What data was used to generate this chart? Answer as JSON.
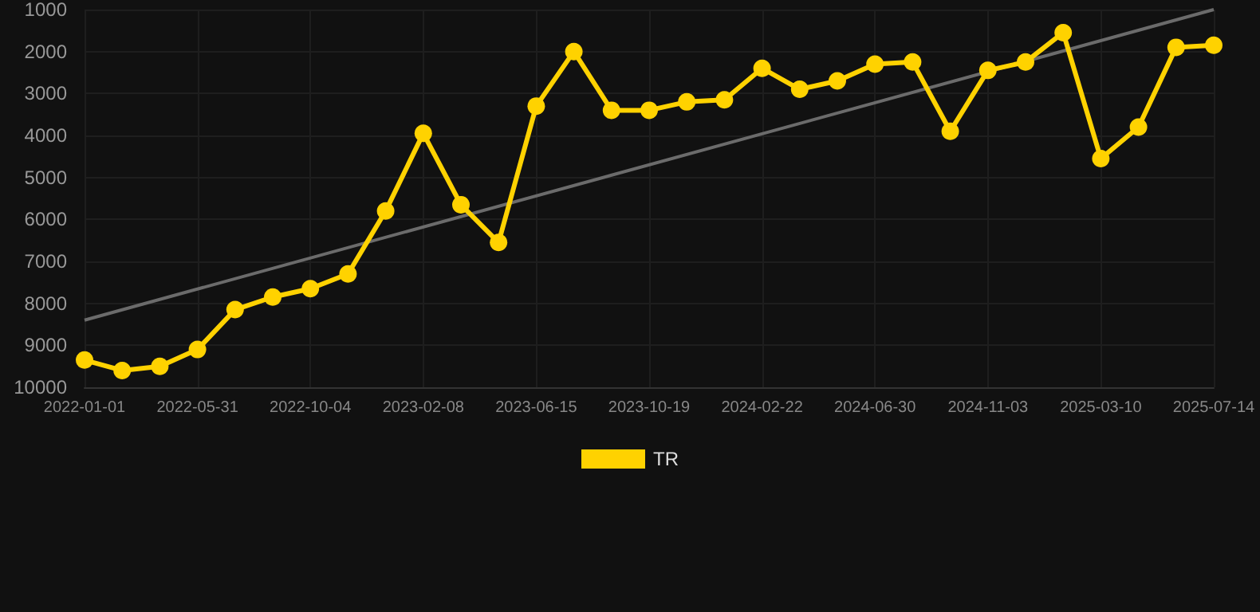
{
  "chart_data": {
    "type": "line",
    "categories": [
      "2022-01-01",
      null,
      null,
      "2022-05-31",
      null,
      null,
      "2022-10-04",
      null,
      null,
      "2023-02-08",
      null,
      null,
      "2023-06-15",
      null,
      null,
      "2023-10-19",
      null,
      null,
      "2024-02-22",
      null,
      null,
      "2024-06-30",
      null,
      null,
      "2024-11-03",
      null,
      null,
      "2025-03-10",
      null,
      null,
      "2025-07-14"
    ],
    "series": [
      {
        "name": "TR",
        "color": "#ffd200",
        "marker": "circle",
        "values": [
          9350,
          9600,
          9500,
          9100,
          8150,
          7850,
          7650,
          7300,
          5800,
          3950,
          5650,
          6550,
          3300,
          2000,
          3400,
          3400,
          3200,
          3150,
          2400,
          2900,
          2700,
          2300,
          2250,
          3900,
          2450,
          2250,
          1550,
          4550,
          3800,
          1900,
          1850
        ]
      },
      {
        "color": "#6b6b6b",
        "marker": "none",
        "values": [
          8400,
          null,
          null,
          null,
          null,
          null,
          null,
          null,
          null,
          null,
          null,
          null,
          null,
          null,
          null,
          null,
          null,
          null,
          null,
          null,
          null,
          null,
          null,
          null,
          null,
          null,
          null,
          null,
          null,
          null,
          1000
        ]
      }
    ],
    "ylim": [
      10000,
      1000
    ],
    "yticks": [
      1000,
      2000,
      3000,
      4000,
      5000,
      6000,
      7000,
      8000,
      9000,
      10000
    ],
    "grid": true,
    "legend": "bottom"
  }
}
